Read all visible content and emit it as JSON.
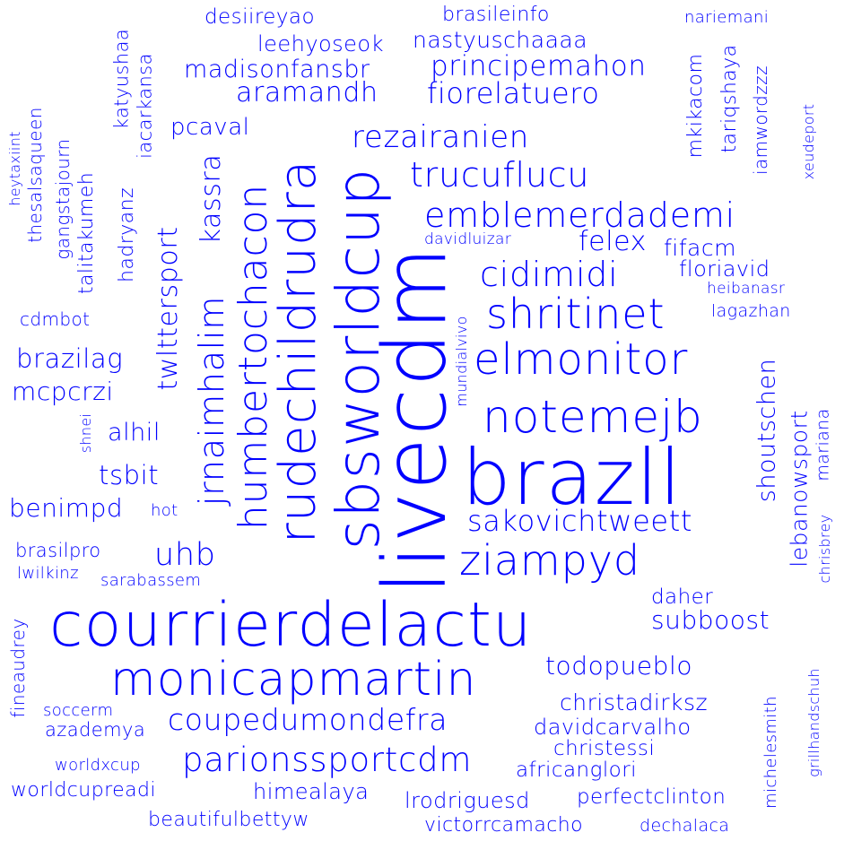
{
  "cloud": {
    "color": "#0000ff",
    "words": [
      {
        "text": "courrierdelactu",
        "orientation": "horizontal"
      },
      {
        "text": "livecdm",
        "orientation": "vertical"
      },
      {
        "text": "brazll",
        "orientation": "horizontal"
      },
      {
        "text": "sbsworldcup",
        "orientation": "vertical"
      },
      {
        "text": "monicapmartin",
        "orientation": "horizontal"
      },
      {
        "text": "rudechildrudra",
        "orientation": "vertical"
      },
      {
        "text": "notemejb",
        "orientation": "horizontal"
      },
      {
        "text": "humbertochacon",
        "orientation": "vertical"
      },
      {
        "text": "ziampyd",
        "orientation": "horizontal"
      },
      {
        "text": "elmonitor",
        "orientation": "horizontal"
      },
      {
        "text": "shritinet",
        "orientation": "horizontal"
      },
      {
        "text": "parionssportcdm",
        "orientation": "horizontal"
      },
      {
        "text": "emblemerdademi",
        "orientation": "horizontal"
      },
      {
        "text": "jrnaimhalim",
        "orientation": "vertical"
      },
      {
        "text": "trucuflucu",
        "orientation": "horizontal"
      },
      {
        "text": "coupedumondefra",
        "orientation": "horizontal"
      },
      {
        "text": "cidimidi",
        "orientation": "horizontal"
      },
      {
        "text": "rezairanien",
        "orientation": "horizontal"
      },
      {
        "text": "sakovichtweett",
        "orientation": "horizontal"
      },
      {
        "text": "fiorelatuero",
        "orientation": "horizontal"
      },
      {
        "text": "principemahon",
        "orientation": "horizontal"
      },
      {
        "text": "aramandh",
        "orientation": "horizontal"
      },
      {
        "text": "madisonfansbr",
        "orientation": "horizontal"
      },
      {
        "text": "nastyuschaaaa",
        "orientation": "horizontal"
      },
      {
        "text": "todopueblo",
        "orientation": "horizontal"
      },
      {
        "text": "christadirksz",
        "orientation": "horizontal"
      },
      {
        "text": "twlttersport",
        "orientation": "vertical"
      },
      {
        "text": "kassra",
        "orientation": "vertical"
      },
      {
        "text": "uhb",
        "orientation": "horizontal"
      },
      {
        "text": "felex",
        "orientation": "horizontal"
      },
      {
        "text": "subboost",
        "orientation": "horizontal"
      },
      {
        "text": "shoutschen",
        "orientation": "vertical"
      },
      {
        "text": "lebanowsport",
        "orientation": "vertical"
      },
      {
        "text": "himealaya",
        "orientation": "horizontal"
      },
      {
        "text": "lrodriguesd",
        "orientation": "horizontal"
      },
      {
        "text": "perfectclinton",
        "orientation": "horizontal"
      },
      {
        "text": "africanglori",
        "orientation": "horizontal"
      },
      {
        "text": "christessi",
        "orientation": "horizontal"
      },
      {
        "text": "davidcarvalho",
        "orientation": "horizontal"
      },
      {
        "text": "daher",
        "orientation": "horizontal"
      },
      {
        "text": "benimpd",
        "orientation": "horizontal"
      },
      {
        "text": "brazilag",
        "orientation": "horizontal"
      },
      {
        "text": "mcpcrzi",
        "orientation": "horizontal"
      },
      {
        "text": "alhil",
        "orientation": "horizontal"
      },
      {
        "text": "tsbit",
        "orientation": "horizontal"
      },
      {
        "text": "floriavid",
        "orientation": "horizontal"
      },
      {
        "text": "pcaval",
        "orientation": "horizontal"
      },
      {
        "text": "leehyoseok",
        "orientation": "horizontal"
      },
      {
        "text": "desiireyao",
        "orientation": "horizontal"
      },
      {
        "text": "brasileinfo",
        "orientation": "horizontal"
      },
      {
        "text": "fifacm",
        "orientation": "horizontal"
      },
      {
        "text": "worldcupreadi",
        "orientation": "horizontal"
      },
      {
        "text": "victorrcamacho",
        "orientation": "horizontal"
      },
      {
        "text": "beautifulbettyw",
        "orientation": "horizontal"
      },
      {
        "text": "azademya",
        "orientation": "horizontal"
      },
      {
        "text": "soccerm",
        "orientation": "horizontal"
      },
      {
        "text": "worldxcup",
        "orientation": "horizontal"
      },
      {
        "text": "brasilpro",
        "orientation": "horizontal"
      },
      {
        "text": "lwilkinz",
        "orientation": "horizontal"
      },
      {
        "text": "sarabassem",
        "orientation": "horizontal"
      },
      {
        "text": "hot",
        "orientation": "horizontal"
      },
      {
        "text": "cdmbot",
        "orientation": "horizontal"
      },
      {
        "text": "davidluizar",
        "orientation": "horizontal"
      },
      {
        "text": "heibanasr",
        "orientation": "horizontal"
      },
      {
        "text": "lagazhan",
        "orientation": "horizontal"
      },
      {
        "text": "dechalaca",
        "orientation": "horizontal"
      },
      {
        "text": "nariemani",
        "orientation": "horizontal"
      },
      {
        "text": "mkikacom",
        "orientation": "vertical"
      },
      {
        "text": "tariqshaya",
        "orientation": "vertical"
      },
      {
        "text": "iamwordzzz",
        "orientation": "vertical"
      },
      {
        "text": "xeudeport",
        "orientation": "vertical"
      },
      {
        "text": "mariana",
        "orientation": "vertical"
      },
      {
        "text": "chrisbrey",
        "orientation": "vertical"
      },
      {
        "text": "michelesmith",
        "orientation": "vertical"
      },
      {
        "text": "grillhandschuh",
        "orientation": "vertical"
      },
      {
        "text": "fineaudrey",
        "orientation": "vertical"
      },
      {
        "text": "mundialvivo",
        "orientation": "vertical"
      },
      {
        "text": "shnei",
        "orientation": "vertical"
      },
      {
        "text": "hadryanz",
        "orientation": "vertical"
      },
      {
        "text": "talitakumeh",
        "orientation": "vertical"
      },
      {
        "text": "gangstajourn",
        "orientation": "vertical"
      },
      {
        "text": "thesalsaqueen",
        "orientation": "vertical"
      },
      {
        "text": "heytaxiint",
        "orientation": "vertical"
      },
      {
        "text": "katyushaa",
        "orientation": "vertical"
      },
      {
        "text": "iacarkansa",
        "orientation": "vertical"
      }
    ]
  }
}
